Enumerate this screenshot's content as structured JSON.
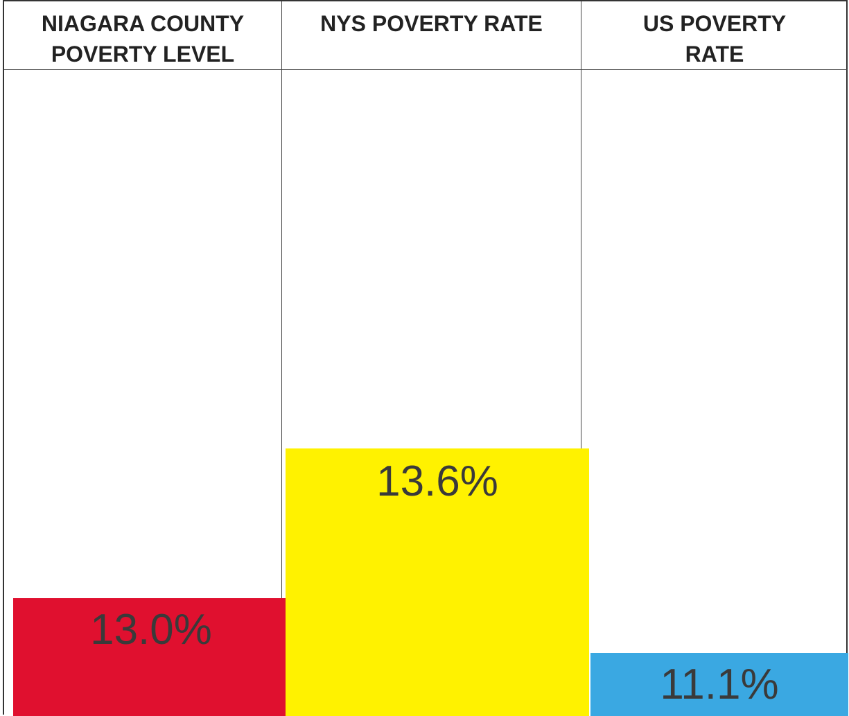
{
  "table": {
    "columns": [
      {
        "header": "NIAGARA COUNTY POVERTY LEVEL",
        "value": "13.0%",
        "color": "#e0102f"
      },
      {
        "header": "NYS POVERTY RATE",
        "value": "13.6%",
        "color": "#fff200"
      },
      {
        "header": "US POVERTY RATE",
        "value": "11.1%",
        "color": "#3aa8e2"
      }
    ]
  }
}
